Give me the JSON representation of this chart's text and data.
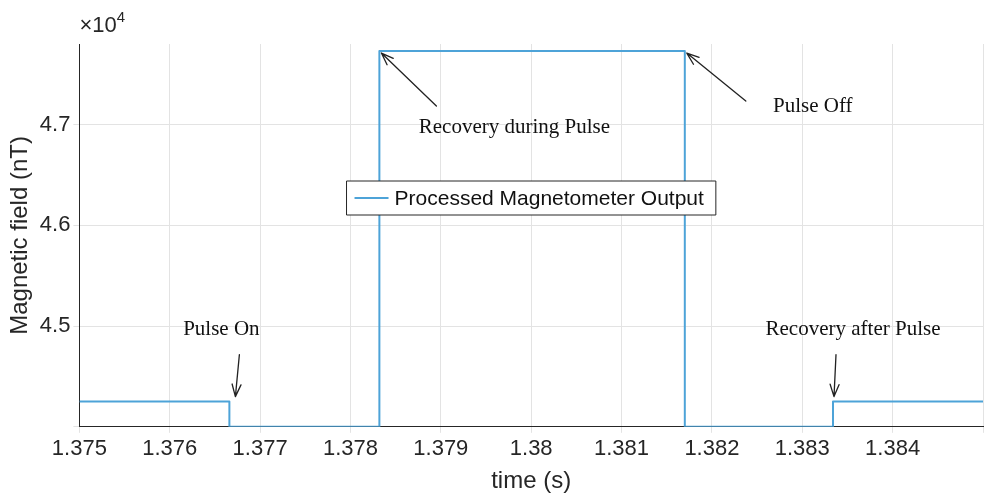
{
  "chart_data": {
    "type": "line",
    "xlabel": "time (s)",
    "ylabel": "Magnetic field (nT)",
    "x": [
      1.375,
      1.37666,
      1.37666,
      1.37832,
      1.37832,
      1.3817,
      1.3817,
      1.38334,
      1.38334,
      1.385
    ],
    "series": [
      {
        "name": "Processed Magnetometer Output",
        "color": "#4da3d8",
        "values": [
          4.425,
          4.425,
          4.4,
          4.4,
          4.773,
          4.773,
          4.4,
          4.4,
          4.425,
          4.425
        ]
      }
    ],
    "xlim": [
      1.375,
      1.385
    ],
    "xticks": [
      1.375,
      1.376,
      1.377,
      1.378,
      1.379,
      1.38,
      1.381,
      1.382,
      1.383,
      1.384,
      {
        "value": 1.385,
        "label": null
      }
    ],
    "ylim": [
      4.4,
      4.78
    ],
    "yticks": [
      {
        "value": 4.4,
        "label": null
      },
      4.5,
      4.6,
      4.7
    ],
    "grid": true,
    "legend": "top",
    "marker": "none",
    "line_style": "solid",
    "annotations": [
      "×10$^{4}$",
      {
        "text": "Recovery during Pulse",
        "x": 1.37832,
        "y": 4.773
      },
      {
        "text": "Pulse Off",
        "x": 1.3817,
        "y": 4.773
      },
      {
        "text": "Pulse On",
        "x": 1.37666,
        "y": 4.425
      },
      {
        "text": "Recovery after Pulse",
        "x": 1.38334,
        "y": 4.425
      }
    ]
  }
}
